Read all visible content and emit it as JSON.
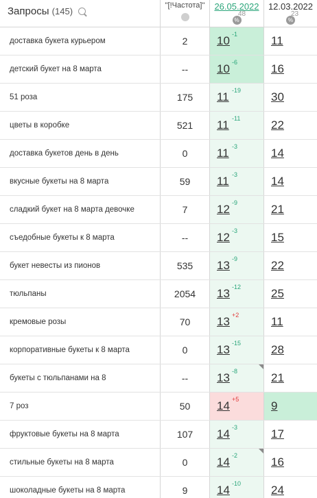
{
  "header": {
    "query_title": "Запросы",
    "query_count": "(145)",
    "freq_title": "\"[!Частота]\"",
    "date1": "26.05.2022",
    "date1_count": "48",
    "date2": "12.03.2022",
    "date2_count": "23",
    "pct_symbol": "%"
  },
  "rows": [
    {
      "query": "доставка букета курьером",
      "freq": "2",
      "pos1": "10",
      "delta1": "-1",
      "pos2": "11",
      "pos1_style": "deep"
    },
    {
      "query": "детский букет на 8 марта",
      "freq": "--",
      "pos1": "10",
      "delta1": "-6",
      "pos2": "16",
      "pos1_style": "deep"
    },
    {
      "query": "51 роза",
      "freq": "175",
      "pos1": "11",
      "delta1": "-19",
      "pos2": "30"
    },
    {
      "query": "цветы в коробке",
      "freq": "521",
      "pos1": "11",
      "delta1": "-11",
      "pos2": "22"
    },
    {
      "query": "доставка букетов день в день",
      "freq": "0",
      "pos1": "11",
      "delta1": "-3",
      "pos2": "14"
    },
    {
      "query": "вкусные букеты на 8 марта",
      "freq": "59",
      "pos1": "11",
      "delta1": "-3",
      "pos2": "14"
    },
    {
      "query": "сладкий букет на 8 марта девочке",
      "freq": "7",
      "pos1": "12",
      "delta1": "-9",
      "pos2": "21"
    },
    {
      "query": "съедобные букеты к 8 марта",
      "freq": "--",
      "pos1": "12",
      "delta1": "-3",
      "pos2": "15"
    },
    {
      "query": "букет невесты из пионов",
      "freq": "535",
      "pos1": "13",
      "delta1": "-9",
      "pos2": "22"
    },
    {
      "query": "тюльпаны",
      "freq": "2054",
      "pos1": "13",
      "delta1": "-12",
      "pos2": "25"
    },
    {
      "query": "кремовые розы",
      "freq": "70",
      "pos1": "13",
      "delta1": "+2",
      "pos2": "11",
      "delta_color": "red"
    },
    {
      "query": "корпоративные букеты к 8 марта",
      "freq": "0",
      "pos1": "13",
      "delta1": "-15",
      "pos2": "28"
    },
    {
      "query": "букеты с тюльпанами на 8",
      "freq": "--",
      "pos1": "13",
      "delta1": "-8",
      "pos2": "21",
      "corner": true
    },
    {
      "query": "7 роз",
      "freq": "50",
      "pos1": "14",
      "delta1": "+5",
      "pos2": "9",
      "pos1_style": "red",
      "delta_color": "red",
      "pos2_style": "good"
    },
    {
      "query": "фруктовые букеты на 8 марта",
      "freq": "107",
      "pos1": "14",
      "delta1": "-3",
      "pos2": "17"
    },
    {
      "query": "стильные букеты на 8 марта",
      "freq": "0",
      "pos1": "14",
      "delta1": "-2",
      "pos2": "16",
      "corner": true
    },
    {
      "query": "шоколадные букеты на 8 марта",
      "freq": "9",
      "pos1": "14",
      "delta1": "-10",
      "pos2": "24"
    }
  ]
}
